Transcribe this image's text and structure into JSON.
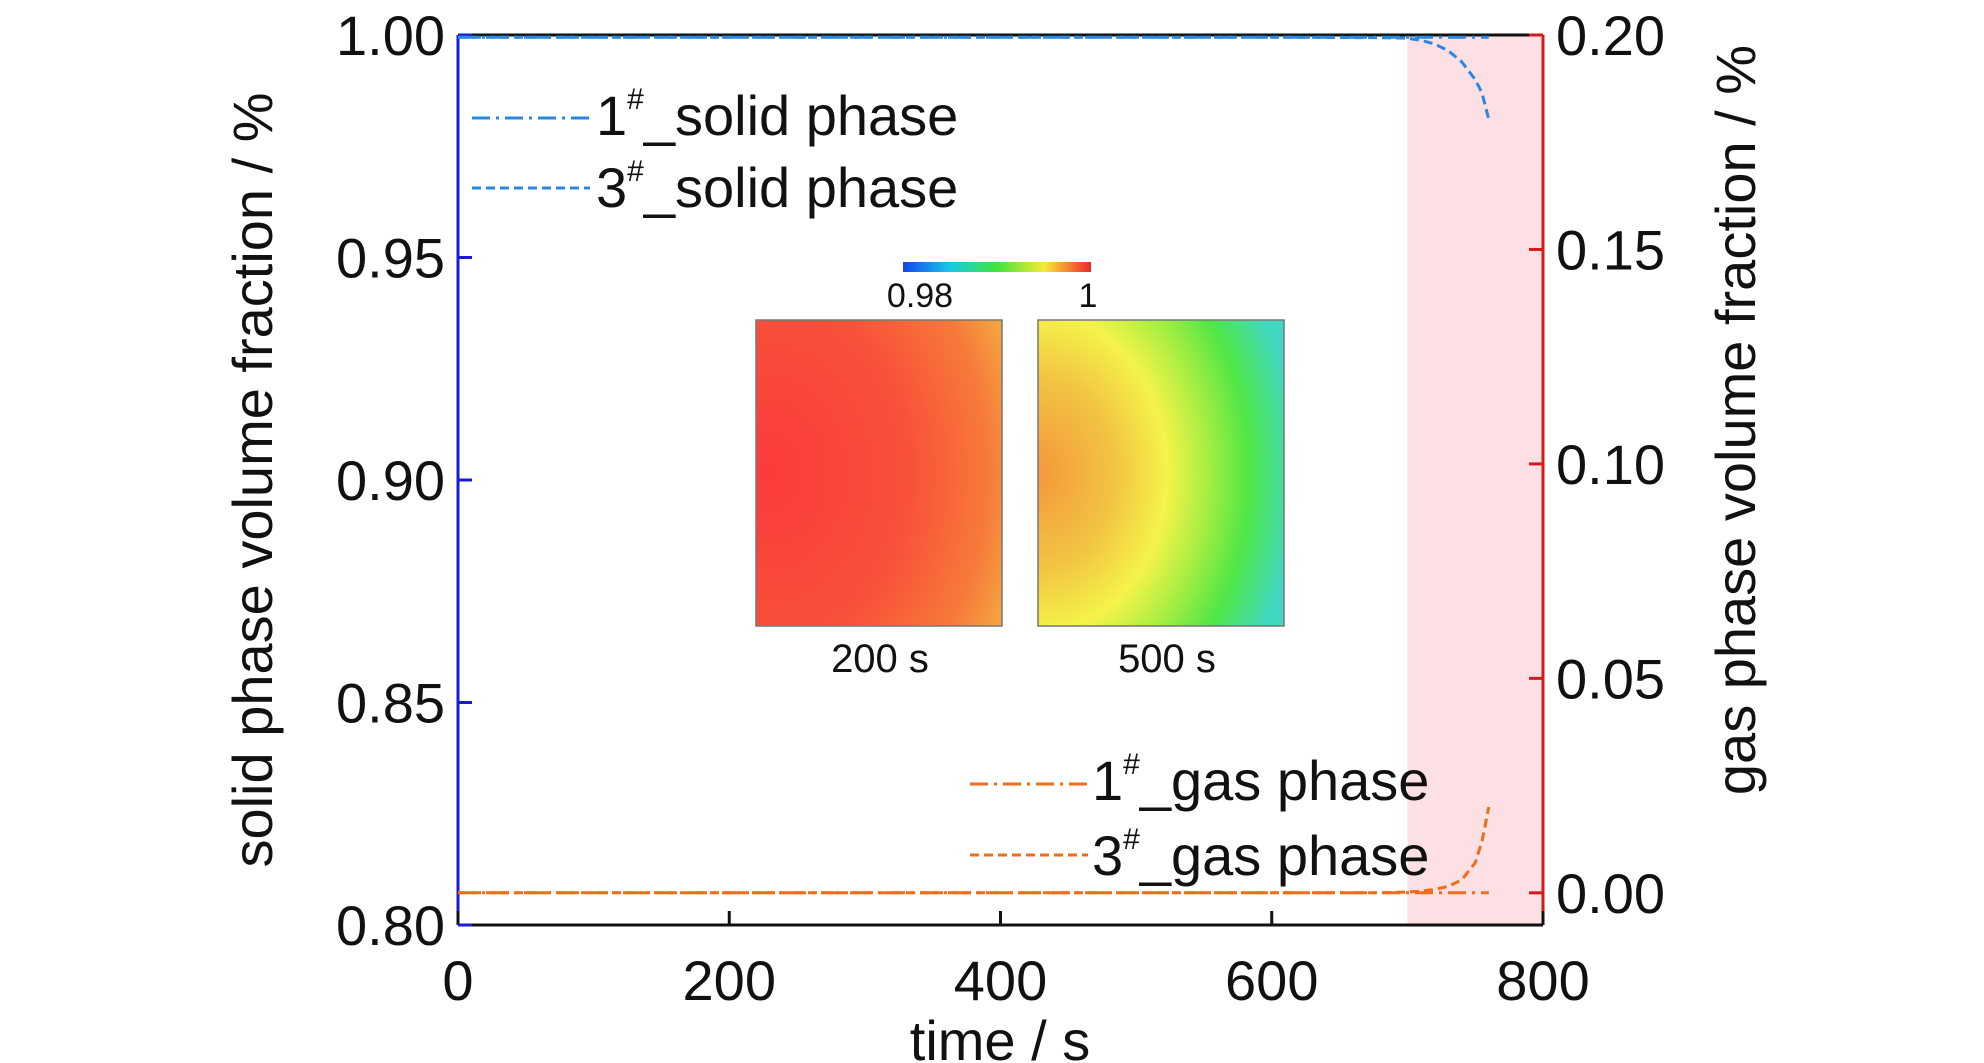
{
  "chart_data": {
    "type": "line",
    "title": "",
    "xlabel": "time / s",
    "ylabel_left": "solid phase volume fraction / %",
    "ylabel_right": "gas phase volume fraction / %",
    "xlim": [
      0,
      800
    ],
    "ylim_left": [
      0.8,
      1.0
    ],
    "ylim_right": [
      -0.0075,
      0.2
    ],
    "x_ticks": [
      "0",
      "200",
      "400",
      "600",
      "800"
    ],
    "y_left_ticks": [
      "0.80",
      "0.85",
      "0.90",
      "0.95",
      "1.00"
    ],
    "y_right_ticks": [
      "0.00",
      "0.05",
      "0.10",
      "0.15",
      "0.20"
    ],
    "grid": false,
    "left_axis_color": "#1a1ad6",
    "right_axis_color": "#d61a1a",
    "highlight_region": {
      "x": [
        700,
        800
      ],
      "color": "#fde0e3"
    },
    "series": [
      {
        "name_main": "1",
        "name_sup": "#",
        "name_rest": "_solid phase",
        "axis": "left",
        "color": "#2b88e0",
        "dash": "dashdot",
        "x": [
          0,
          100,
          200,
          300,
          400,
          500,
          600,
          700,
          760
        ],
        "y": [
          0.9995,
          0.9995,
          0.9995,
          0.9995,
          0.9995,
          0.9995,
          0.9995,
          0.9995,
          0.9995
        ]
      },
      {
        "name_main": "3",
        "name_sup": "#",
        "name_rest": "_solid phase",
        "axis": "left",
        "color": "#2b88e0",
        "dash": "dashed",
        "x": [
          0,
          200,
          400,
          600,
          680,
          700,
          710,
          720,
          730,
          740,
          750,
          755,
          760
        ],
        "y": [
          0.9995,
          0.9995,
          0.9995,
          0.9995,
          0.9994,
          0.9993,
          0.9988,
          0.998,
          0.9965,
          0.994,
          0.99,
          0.987,
          0.981
        ]
      },
      {
        "name_main": "1",
        "name_sup": "#",
        "name_rest": "_gas phase",
        "axis": "right",
        "color": "#ef6c1a",
        "dash": "dashdot",
        "x": [
          0,
          100,
          200,
          300,
          400,
          500,
          600,
          700,
          760
        ],
        "y": [
          0.0,
          0.0,
          0.0,
          0.0,
          0.0,
          0.0,
          0.0,
          0.0,
          0.0
        ]
      },
      {
        "name_main": "3",
        "name_sup": "#",
        "name_rest": "_gas phase",
        "axis": "right",
        "color": "#ef6c1a",
        "dash": "dashed",
        "x": [
          0,
          200,
          400,
          600,
          680,
          700,
          710,
          720,
          730,
          740,
          750,
          755,
          760
        ],
        "y": [
          0.0,
          0.0,
          0.0,
          0.0,
          0.0,
          0.0002,
          0.0004,
          0.0008,
          0.0015,
          0.003,
          0.007,
          0.012,
          0.02
        ]
      }
    ],
    "inset": {
      "colorbar_min": "0.98",
      "colorbar_max": "1",
      "panels": [
        {
          "label": "200 s"
        },
        {
          "label": "500 s"
        }
      ]
    }
  }
}
